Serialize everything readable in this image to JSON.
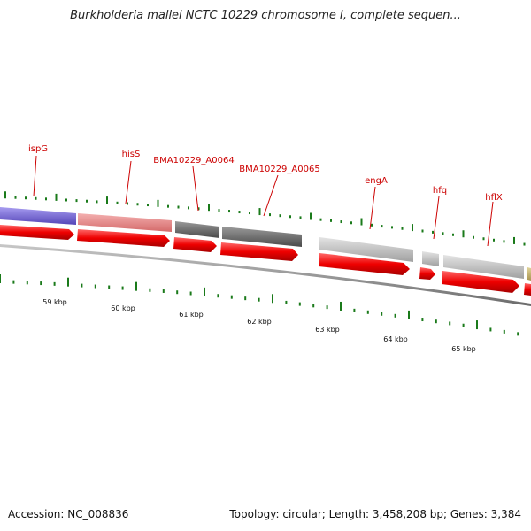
{
  "title": "Burkholderia mallei NCTC 10229 chromosome I, complete sequen...",
  "footer": {
    "accession": "Accession: NC_008836",
    "summary": "Topology: circular; Length: 3,458,208 bp; Genes: 3,384"
  },
  "scale_labels": [
    "59 kbp",
    "60 kbp",
    "61 kbp",
    "62 kbp",
    "63 kbp",
    "64 kbp",
    "65 kbp"
  ],
  "gene_labels": [
    "ispG",
    "hisS",
    "BMA10229_A0064",
    "BMA10229_A0065",
    "engA",
    "hfq",
    "hflX"
  ],
  "colors": {
    "label_text": "#cc0000",
    "label_line": "#cc0000",
    "cds_arrow": "#ee0000",
    "tick": "#1a7a1a",
    "backbone": "#8a8a8a",
    "gene_blue": "#7b6fd6",
    "gene_pink": "#e88a8a",
    "gene_darkgray": "#6a6a6a",
    "gene_lightgray": "#bdbdbd",
    "gene_olive": "#c8b46e"
  }
}
